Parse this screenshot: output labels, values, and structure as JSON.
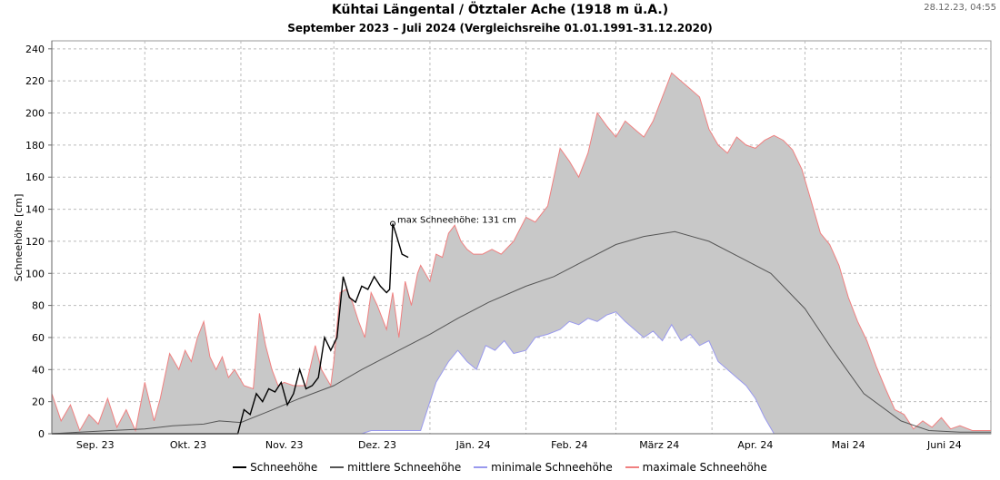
{
  "header": {
    "title": "Kühtai Längental / Ötztaler Ache (1918 m ü.A.)",
    "subtitle": "September 2023 – Juli 2024 (Vergleichsreihe 01.01.1991–31.12.2020)",
    "timestamp": "28.12.23, 04:55"
  },
  "chart_data": {
    "type": "area",
    "x_unit": "day",
    "x_range": [
      "2023-09-01",
      "2024-06-30"
    ],
    "ylabel": "Schneehöhe [cm]",
    "ylim": [
      0,
      245
    ],
    "yticks": [
      0,
      20,
      40,
      60,
      80,
      100,
      120,
      140,
      160,
      180,
      200,
      220,
      240
    ],
    "grid": true,
    "legend_position": "bottom",
    "month_ticks": [
      {
        "label": "Sep. 23",
        "date": "2023-09-15"
      },
      {
        "label": "Okt. 23",
        "date": "2023-10-15"
      },
      {
        "label": "Nov. 23",
        "date": "2023-11-15"
      },
      {
        "label": "Dez. 23",
        "date": "2023-12-15"
      },
      {
        "label": "Jän. 24",
        "date": "2024-01-15"
      },
      {
        "label": "Feb. 24",
        "date": "2024-02-15"
      },
      {
        "label": "März 24",
        "date": "2024-03-15"
      },
      {
        "label": "Apr. 24",
        "date": "2024-04-15"
      },
      {
        "label": "Mai 24",
        "date": "2024-05-15"
      },
      {
        "label": "Juni 24",
        "date": "2024-06-15"
      }
    ],
    "month_gridlines": [
      "2023-10-01",
      "2023-11-01",
      "2023-12-01",
      "2024-01-01",
      "2024-02-01",
      "2024-03-01",
      "2024-04-01",
      "2024-05-01",
      "2024-06-01"
    ],
    "annotation": {
      "text": "max Schneehöhe: 131 cm",
      "date": "2023-12-20",
      "value": 131
    },
    "series": [
      {
        "name": "maximale Schneehöhe",
        "color": "#f08080",
        "points": [
          [
            "2023-09-01",
            25
          ],
          [
            "2023-09-04",
            8
          ],
          [
            "2023-09-07",
            18
          ],
          [
            "2023-09-10",
            2
          ],
          [
            "2023-09-13",
            12
          ],
          [
            "2023-09-16",
            6
          ],
          [
            "2023-09-19",
            22
          ],
          [
            "2023-09-22",
            4
          ],
          [
            "2023-09-25",
            15
          ],
          [
            "2023-09-28",
            2
          ],
          [
            "2023-10-01",
            32
          ],
          [
            "2023-10-04",
            8
          ],
          [
            "2023-10-06",
            22
          ],
          [
            "2023-10-09",
            50
          ],
          [
            "2023-10-12",
            40
          ],
          [
            "2023-10-14",
            52
          ],
          [
            "2023-10-16",
            45
          ],
          [
            "2023-10-18",
            60
          ],
          [
            "2023-10-20",
            70
          ],
          [
            "2023-10-22",
            48
          ],
          [
            "2023-10-24",
            40
          ],
          [
            "2023-10-26",
            48
          ],
          [
            "2023-10-28",
            35
          ],
          [
            "2023-10-30",
            40
          ],
          [
            "2023-11-02",
            30
          ],
          [
            "2023-11-05",
            28
          ],
          [
            "2023-11-07",
            75
          ],
          [
            "2023-11-09",
            55
          ],
          [
            "2023-11-11",
            40
          ],
          [
            "2023-11-13",
            30
          ],
          [
            "2023-11-15",
            32
          ],
          [
            "2023-11-18",
            30
          ],
          [
            "2023-11-22",
            30
          ],
          [
            "2023-11-25",
            55
          ],
          [
            "2023-11-27",
            40
          ],
          [
            "2023-11-30",
            30
          ],
          [
            "2023-12-01",
            45
          ],
          [
            "2023-12-03",
            88
          ],
          [
            "2023-12-05",
            90
          ],
          [
            "2023-12-07",
            82
          ],
          [
            "2023-12-09",
            70
          ],
          [
            "2023-12-11",
            60
          ],
          [
            "2023-12-13",
            88
          ],
          [
            "2023-12-15",
            80
          ],
          [
            "2023-12-17",
            70
          ],
          [
            "2023-12-18",
            65
          ],
          [
            "2023-12-20",
            88
          ],
          [
            "2023-12-22",
            60
          ],
          [
            "2023-12-24",
            95
          ],
          [
            "2023-12-26",
            80
          ],
          [
            "2023-12-28",
            100
          ],
          [
            "2023-12-29",
            105
          ],
          [
            "2024-01-01",
            95
          ],
          [
            "2024-01-03",
            112
          ],
          [
            "2024-01-05",
            110
          ],
          [
            "2024-01-07",
            125
          ],
          [
            "2024-01-09",
            130
          ],
          [
            "2024-01-11",
            120
          ],
          [
            "2024-01-13",
            115
          ],
          [
            "2024-01-15",
            112
          ],
          [
            "2024-01-18",
            112
          ],
          [
            "2024-01-21",
            115
          ],
          [
            "2024-01-24",
            112
          ],
          [
            "2024-01-28",
            120
          ],
          [
            "2024-02-01",
            135
          ],
          [
            "2024-02-04",
            132
          ],
          [
            "2024-02-08",
            142
          ],
          [
            "2024-02-12",
            178
          ],
          [
            "2024-02-15",
            170
          ],
          [
            "2024-02-18",
            160
          ],
          [
            "2024-02-21",
            175
          ],
          [
            "2024-02-24",
            200
          ],
          [
            "2024-02-27",
            192
          ],
          [
            "2024-03-01",
            185
          ],
          [
            "2024-03-04",
            195
          ],
          [
            "2024-03-07",
            190
          ],
          [
            "2024-03-10",
            185
          ],
          [
            "2024-03-13",
            195
          ],
          [
            "2024-03-16",
            210
          ],
          [
            "2024-03-19",
            225
          ],
          [
            "2024-03-22",
            220
          ],
          [
            "2024-03-25",
            215
          ],
          [
            "2024-03-28",
            210
          ],
          [
            "2024-03-31",
            190
          ],
          [
            "2024-04-03",
            180
          ],
          [
            "2024-04-06",
            175
          ],
          [
            "2024-04-09",
            185
          ],
          [
            "2024-04-12",
            180
          ],
          [
            "2024-04-15",
            178
          ],
          [
            "2024-04-18",
            183
          ],
          [
            "2024-04-21",
            186
          ],
          [
            "2024-04-24",
            183
          ],
          [
            "2024-04-27",
            177
          ],
          [
            "2024-04-30",
            165
          ],
          [
            "2024-05-03",
            145
          ],
          [
            "2024-05-06",
            125
          ],
          [
            "2024-05-09",
            118
          ],
          [
            "2024-05-12",
            105
          ],
          [
            "2024-05-15",
            85
          ],
          [
            "2024-05-18",
            70
          ],
          [
            "2024-05-21",
            58
          ],
          [
            "2024-05-24",
            42
          ],
          [
            "2024-05-27",
            28
          ],
          [
            "2024-05-30",
            15
          ],
          [
            "2024-06-02",
            12
          ],
          [
            "2024-06-05",
            3
          ],
          [
            "2024-06-08",
            8
          ],
          [
            "2024-06-11",
            4
          ],
          [
            "2024-06-14",
            10
          ],
          [
            "2024-06-17",
            3
          ],
          [
            "2024-06-20",
            5
          ],
          [
            "2024-06-24",
            2
          ],
          [
            "2024-06-30",
            2
          ]
        ]
      },
      {
        "name": "minimale Schneehöhe",
        "color": "#9999ee",
        "points": [
          [
            "2023-09-01",
            0
          ],
          [
            "2023-12-10",
            0
          ],
          [
            "2023-12-13",
            2
          ],
          [
            "2023-12-29",
            2
          ],
          [
            "2024-01-01",
            20
          ],
          [
            "2024-01-03",
            32
          ],
          [
            "2024-01-07",
            45
          ],
          [
            "2024-01-10",
            52
          ],
          [
            "2024-01-13",
            45
          ],
          [
            "2024-01-16",
            40
          ],
          [
            "2024-01-19",
            55
          ],
          [
            "2024-01-22",
            52
          ],
          [
            "2024-01-25",
            58
          ],
          [
            "2024-01-28",
            50
          ],
          [
            "2024-02-01",
            52
          ],
          [
            "2024-02-04",
            60
          ],
          [
            "2024-02-08",
            62
          ],
          [
            "2024-02-12",
            65
          ],
          [
            "2024-02-15",
            70
          ],
          [
            "2024-02-18",
            68
          ],
          [
            "2024-02-21",
            72
          ],
          [
            "2024-02-24",
            70
          ],
          [
            "2024-02-27",
            74
          ],
          [
            "2024-03-01",
            76
          ],
          [
            "2024-03-04",
            70
          ],
          [
            "2024-03-07",
            65
          ],
          [
            "2024-03-10",
            60
          ],
          [
            "2024-03-13",
            64
          ],
          [
            "2024-03-16",
            58
          ],
          [
            "2024-03-19",
            68
          ],
          [
            "2024-03-22",
            58
          ],
          [
            "2024-03-25",
            62
          ],
          [
            "2024-03-28",
            55
          ],
          [
            "2024-03-31",
            58
          ],
          [
            "2024-04-03",
            45
          ],
          [
            "2024-04-06",
            40
          ],
          [
            "2024-04-09",
            35
          ],
          [
            "2024-04-12",
            30
          ],
          [
            "2024-04-15",
            22
          ],
          [
            "2024-04-18",
            10
          ],
          [
            "2024-04-21",
            0
          ],
          [
            "2024-06-30",
            0
          ]
        ]
      },
      {
        "name": "mittlere Schneehöhe",
        "color": "#555555",
        "points": [
          [
            "2023-09-01",
            0
          ],
          [
            "2023-09-10",
            1
          ],
          [
            "2023-09-20",
            2
          ],
          [
            "2023-10-01",
            3
          ],
          [
            "2023-10-10",
            5
          ],
          [
            "2023-10-20",
            6
          ],
          [
            "2023-10-25",
            8
          ],
          [
            "2023-11-01",
            7
          ],
          [
            "2023-11-10",
            14
          ],
          [
            "2023-11-20",
            22
          ],
          [
            "2023-12-01",
            30
          ],
          [
            "2023-12-10",
            40
          ],
          [
            "2023-12-20",
            50
          ],
          [
            "2024-01-01",
            62
          ],
          [
            "2024-01-10",
            72
          ],
          [
            "2024-01-20",
            82
          ],
          [
            "2024-02-01",
            92
          ],
          [
            "2024-02-10",
            98
          ],
          [
            "2024-02-20",
            108
          ],
          [
            "2024-03-01",
            118
          ],
          [
            "2024-03-10",
            123
          ],
          [
            "2024-03-20",
            126
          ],
          [
            "2024-03-31",
            120
          ],
          [
            "2024-04-10",
            110
          ],
          [
            "2024-04-20",
            100
          ],
          [
            "2024-05-01",
            78
          ],
          [
            "2024-05-10",
            52
          ],
          [
            "2024-05-20",
            25
          ],
          [
            "2024-06-01",
            8
          ],
          [
            "2024-06-10",
            2
          ],
          [
            "2024-06-20",
            1
          ],
          [
            "2024-06-30",
            1
          ]
        ]
      },
      {
        "name": "Schneehöhe",
        "color": "#000000",
        "points": [
          [
            "2023-09-01",
            0
          ],
          [
            "2023-10-31",
            0
          ],
          [
            "2023-11-02",
            15
          ],
          [
            "2023-11-04",
            12
          ],
          [
            "2023-11-06",
            25
          ],
          [
            "2023-11-08",
            20
          ],
          [
            "2023-11-10",
            28
          ],
          [
            "2023-11-12",
            26
          ],
          [
            "2023-11-14",
            32
          ],
          [
            "2023-11-16",
            18
          ],
          [
            "2023-11-18",
            25
          ],
          [
            "2023-11-20",
            40
          ],
          [
            "2023-11-22",
            28
          ],
          [
            "2023-11-24",
            30
          ],
          [
            "2023-11-26",
            35
          ],
          [
            "2023-11-28",
            60
          ],
          [
            "2023-11-30",
            52
          ],
          [
            "2023-12-02",
            60
          ],
          [
            "2023-12-04",
            98
          ],
          [
            "2023-12-06",
            85
          ],
          [
            "2023-12-08",
            82
          ],
          [
            "2023-12-10",
            92
          ],
          [
            "2023-12-12",
            90
          ],
          [
            "2023-12-14",
            98
          ],
          [
            "2023-12-16",
            92
          ],
          [
            "2023-12-18",
            88
          ],
          [
            "2023-12-19",
            90
          ],
          [
            "2023-12-20",
            131
          ],
          [
            "2023-12-21",
            125
          ],
          [
            "2023-12-23",
            112
          ],
          [
            "2023-12-25",
            110
          ]
        ]
      }
    ]
  },
  "legend": [
    {
      "label": "Schneehöhe",
      "color": "#000000"
    },
    {
      "label": "mittlere Schneehöhe",
      "color": "#555555"
    },
    {
      "label": "minimale Schneehöhe",
      "color": "#9999ee"
    },
    {
      "label": "maximale Schneehöhe",
      "color": "#f08080"
    }
  ]
}
